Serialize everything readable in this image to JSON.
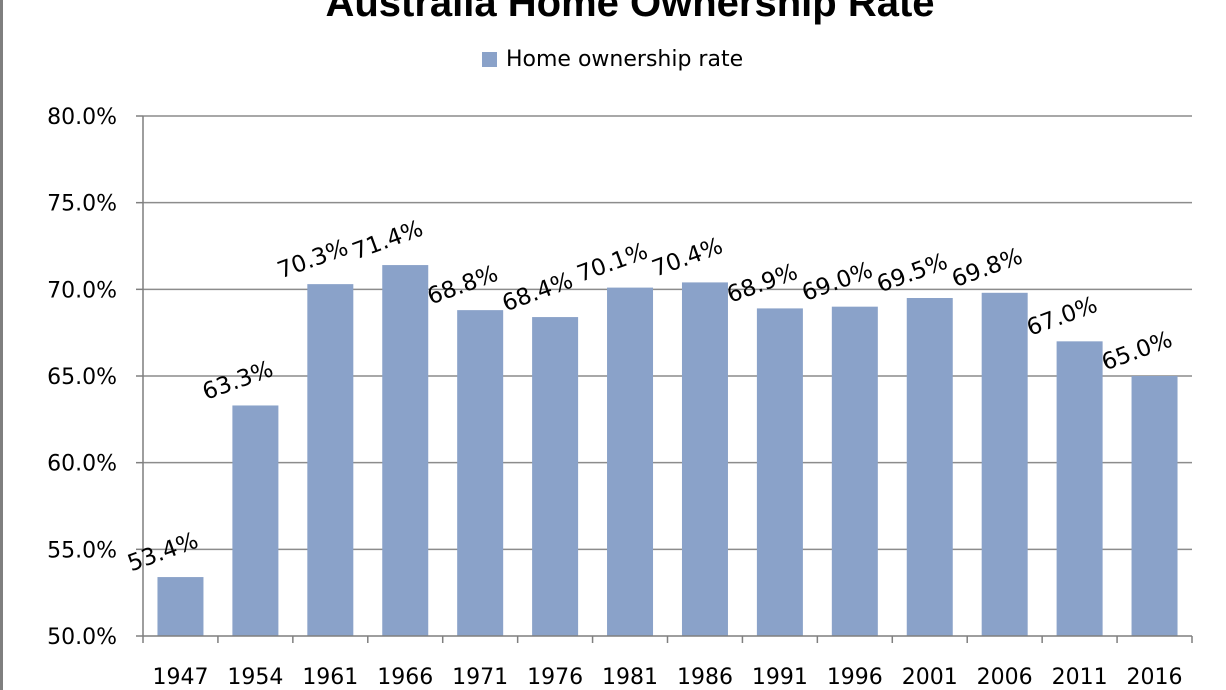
{
  "chart_data": {
    "type": "bar",
    "title": "Australia Home Ownership Rate",
    "xlabel": "",
    "ylabel": "",
    "categories": [
      "1947",
      "1954",
      "1961",
      "1966",
      "1971",
      "1976",
      "1981",
      "1986",
      "1991",
      "1996",
      "2001",
      "2006",
      "2011",
      "2016"
    ],
    "series": [
      {
        "name": "Home ownership rate",
        "values": [
          53.4,
          63.3,
          70.3,
          71.4,
          68.8,
          68.4,
          70.1,
          70.4,
          68.9,
          69.0,
          69.5,
          69.8,
          67.0,
          65.0
        ],
        "data_labels": [
          "53.4%",
          "63.3%",
          "70.3%",
          "71.4%",
          "68.8%",
          "68.4%",
          "70.1%",
          "70.4%",
          "68.9%",
          "69.0%",
          "69.5%",
          "69.8%",
          "67.0%",
          "65.0%"
        ]
      }
    ],
    "ylim": [
      50,
      80
    ],
    "yticks": [
      50,
      55,
      60,
      65,
      70,
      75,
      80
    ],
    "ytick_labels": [
      "50.0%",
      "55.0%",
      "60.0%",
      "65.0%",
      "70.0%",
      "75.0%",
      "80.0%"
    ],
    "grid": true,
    "legend_position": "top-center",
    "bar_color": "#8aa2c9",
    "grid_color": "#8c8c8c",
    "axis_color": "#7f7f7f"
  }
}
